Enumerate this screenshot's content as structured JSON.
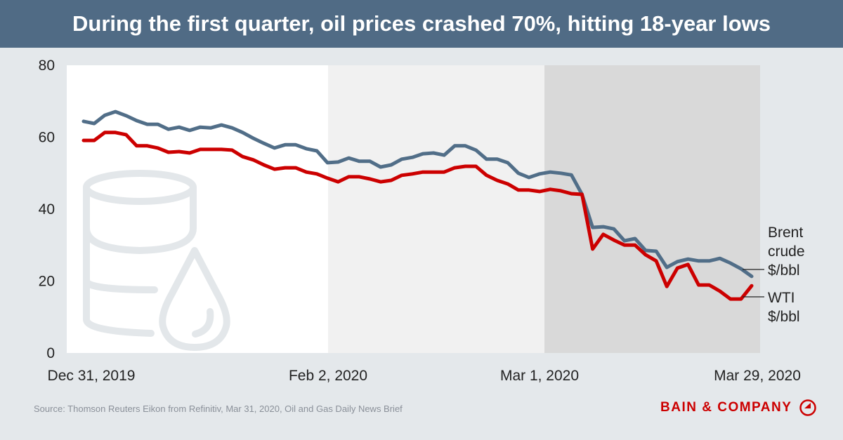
{
  "header": {
    "title": "During the first quarter, oil prices crashed 70%, hitting 18-year lows"
  },
  "footer": {
    "source": "Source: Thomson Reuters Eikon from Refinitiv,  Mar 31, 2020, Oil and Gas Daily News Brief",
    "logo_text": "BAIN & COMPANY"
  },
  "colors": {
    "brent": "#516e88",
    "wti": "#cc0000",
    "header": "#506b85",
    "background": "#e4e8eb",
    "logo": "#cc0000"
  },
  "chart_data": {
    "type": "line",
    "title": "",
    "xlabel": "",
    "ylabel": "",
    "ylim": [
      0,
      80
    ],
    "yticks": [
      "0",
      "20",
      "40",
      "60",
      "80"
    ],
    "xticks": [
      "Dec 31, 2019",
      "Feb 2, 2020",
      "Mar 1, 2020",
      "Mar 29, 2020"
    ],
    "grid": false,
    "background_bands": [
      "Dec 31, 2019 – Feb 2, 2020",
      "Feb 2, 2020 – Mar 1, 2020",
      "Mar 1, 2020 – Mar 29, 2020"
    ],
    "x": [
      "2019-12-31",
      "2020-01-01",
      "2020-01-02",
      "2020-01-03",
      "2020-01-06",
      "2020-01-07",
      "2020-01-08",
      "2020-01-09",
      "2020-01-10",
      "2020-01-13",
      "2020-01-14",
      "2020-01-15",
      "2020-01-16",
      "2020-01-17",
      "2020-01-20",
      "2020-01-21",
      "2020-01-22",
      "2020-01-23",
      "2020-01-24",
      "2020-01-27",
      "2020-01-28",
      "2020-01-29",
      "2020-01-30",
      "2020-01-31",
      "2020-02-03",
      "2020-02-04",
      "2020-02-05",
      "2020-02-06",
      "2020-02-07",
      "2020-02-10",
      "2020-02-11",
      "2020-02-12",
      "2020-02-13",
      "2020-02-14",
      "2020-02-17",
      "2020-02-18",
      "2020-02-19",
      "2020-02-20",
      "2020-02-21",
      "2020-02-24",
      "2020-02-25",
      "2020-02-26",
      "2020-02-27",
      "2020-02-28",
      "2020-03-02",
      "2020-03-03",
      "2020-03-04",
      "2020-03-05",
      "2020-03-06",
      "2020-03-09",
      "2020-03-10",
      "2020-03-11",
      "2020-03-12",
      "2020-03-13",
      "2020-03-16",
      "2020-03-17",
      "2020-03-18",
      "2020-03-19",
      "2020-03-20",
      "2020-03-23",
      "2020-03-24",
      "2020-03-25",
      "2020-03-26",
      "2020-03-27"
    ],
    "series": [
      {
        "name": "Brent crude $/bbl",
        "label_lines": [
          "Brent",
          "crude",
          "$/bbl"
        ],
        "color": "#516e88",
        "values": [
          64.4,
          63.8,
          66.1,
          67.1,
          66.0,
          64.6,
          63.6,
          63.6,
          62.2,
          62.8,
          61.9,
          62.8,
          62.6,
          63.4,
          62.6,
          61.3,
          59.7,
          58.3,
          57.0,
          57.9,
          57.9,
          56.8,
          56.2,
          52.9,
          53.1,
          54.2,
          53.3,
          53.3,
          51.7,
          52.3,
          53.9,
          54.4,
          55.4,
          55.6,
          55.0,
          57.6,
          57.6,
          56.4,
          53.9,
          53.9,
          52.9,
          50.0,
          48.8,
          49.8,
          50.3,
          50.0,
          49.5,
          44.1,
          34.9,
          35.1,
          34.5,
          31.2,
          31.8,
          28.5,
          28.3,
          23.8,
          25.4,
          26.1,
          25.6,
          25.6,
          26.3,
          25.0,
          23.4,
          21.3
        ]
      },
      {
        "name": "WTI $/bbl",
        "label_lines": [
          "WTI",
          "$/bbl"
        ],
        "color": "#cc0000",
        "values": [
          59.1,
          59.1,
          61.3,
          61.3,
          60.7,
          57.6,
          57.6,
          57.0,
          55.8,
          56.0,
          55.6,
          56.6,
          56.6,
          56.6,
          56.4,
          54.6,
          53.7,
          52.3,
          51.1,
          51.5,
          51.5,
          50.3,
          49.8,
          48.6,
          47.6,
          49.0,
          49.0,
          48.4,
          47.6,
          48.0,
          49.4,
          49.8,
          50.3,
          50.3,
          50.3,
          51.5,
          51.9,
          51.9,
          49.4,
          48.0,
          47.0,
          45.3,
          45.3,
          44.9,
          45.5,
          45.1,
          44.3,
          44.1,
          28.9,
          33.0,
          31.4,
          30.0,
          30.0,
          27.3,
          25.6,
          18.5,
          23.6,
          24.6,
          18.9,
          18.9,
          17.2,
          15.0,
          15.0,
          18.7
        ]
      }
    ]
  }
}
